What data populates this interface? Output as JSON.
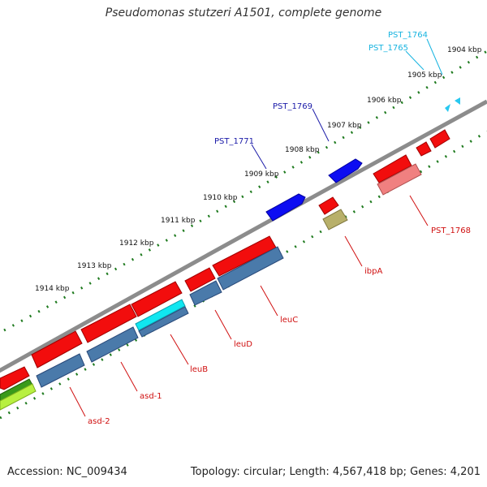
{
  "title": "Pseudomonas stutzeri A1501, complete genome",
  "footer": {
    "accession": "Accession: NC_009434",
    "topology": "Topology: circular; Length: 4,567,418 bp; Genes: 4,201"
  },
  "colors": {
    "backbone": "#8c8c8c",
    "tick": "#1e7a1e",
    "label_forward": "#1a1aa8",
    "label_reverse": "#d01010",
    "label_cyan": "#18b4e0"
  },
  "ticks": [
    "1904 kbp",
    "1905 kbp",
    "1906 kbp",
    "1907 kbp",
    "1908 kbp",
    "1909 kbp",
    "1910 kbp",
    "1911 kbp",
    "1912 kbp",
    "1913 kbp",
    "1914 kbp"
  ],
  "gene_labels": {
    "pst_1764": "PST_1764",
    "pst_1765": "PST_1765",
    "pst_1769": "PST_1769",
    "pst_1771": "PST_1771",
    "pst_1768": "PST_1768",
    "ibpa": "ibpA",
    "leuc": "leuC",
    "leud": "leuD",
    "leub": "leuB",
    "asd1": "asd-1",
    "asd2": "asd-2"
  }
}
